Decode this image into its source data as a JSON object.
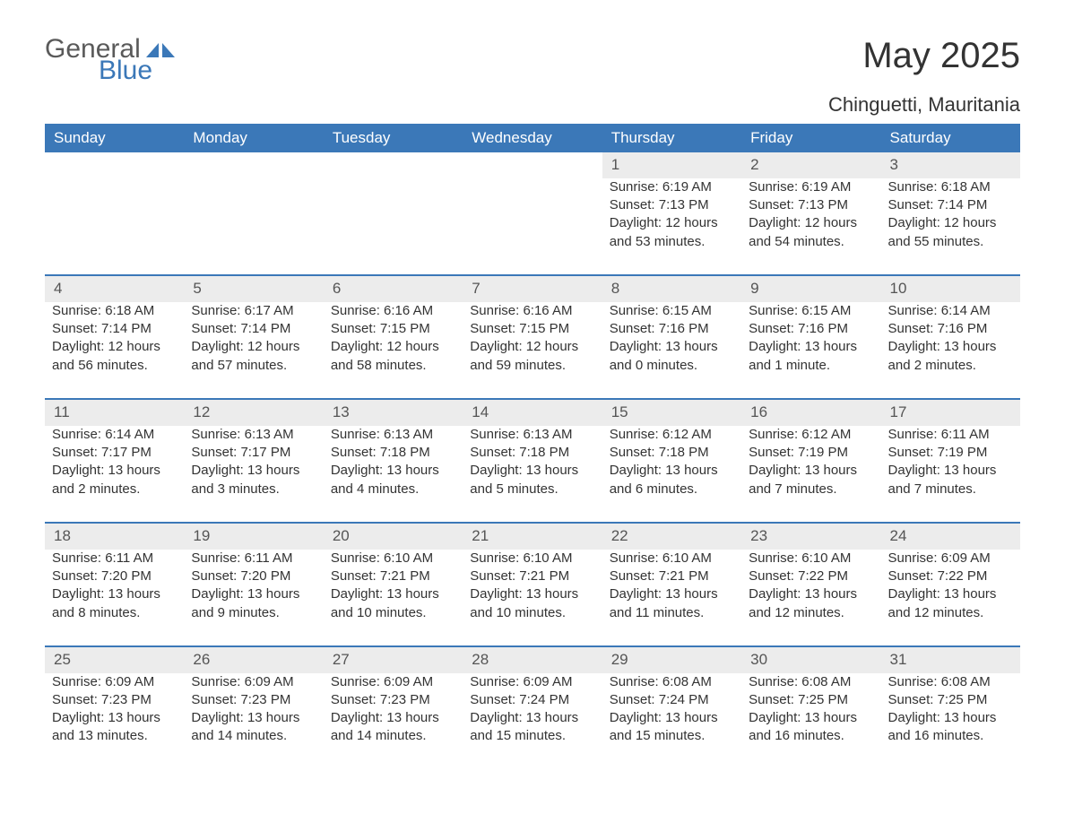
{
  "brand": {
    "word1": "General",
    "word2": "Blue"
  },
  "title": "May 2025",
  "location": "Chinguetti, Mauritania",
  "colors": {
    "header_bg": "#3b78b8",
    "header_text": "#ffffff",
    "daynum_bg": "#ececec",
    "rule": "#3b78b8",
    "body_text": "#333333",
    "background": "#ffffff"
  },
  "weekdays": [
    "Sunday",
    "Monday",
    "Tuesday",
    "Wednesday",
    "Thursday",
    "Friday",
    "Saturday"
  ],
  "weeks": [
    [
      null,
      null,
      null,
      null,
      {
        "n": "1",
        "sr": "Sunrise: 6:19 AM",
        "ss": "Sunset: 7:13 PM",
        "dl": "Daylight: 12 hours and 53 minutes."
      },
      {
        "n": "2",
        "sr": "Sunrise: 6:19 AM",
        "ss": "Sunset: 7:13 PM",
        "dl": "Daylight: 12 hours and 54 minutes."
      },
      {
        "n": "3",
        "sr": "Sunrise: 6:18 AM",
        "ss": "Sunset: 7:14 PM",
        "dl": "Daylight: 12 hours and 55 minutes."
      }
    ],
    [
      {
        "n": "4",
        "sr": "Sunrise: 6:18 AM",
        "ss": "Sunset: 7:14 PM",
        "dl": "Daylight: 12 hours and 56 minutes."
      },
      {
        "n": "5",
        "sr": "Sunrise: 6:17 AM",
        "ss": "Sunset: 7:14 PM",
        "dl": "Daylight: 12 hours and 57 minutes."
      },
      {
        "n": "6",
        "sr": "Sunrise: 6:16 AM",
        "ss": "Sunset: 7:15 PM",
        "dl": "Daylight: 12 hours and 58 minutes."
      },
      {
        "n": "7",
        "sr": "Sunrise: 6:16 AM",
        "ss": "Sunset: 7:15 PM",
        "dl": "Daylight: 12 hours and 59 minutes."
      },
      {
        "n": "8",
        "sr": "Sunrise: 6:15 AM",
        "ss": "Sunset: 7:16 PM",
        "dl": "Daylight: 13 hours and 0 minutes."
      },
      {
        "n": "9",
        "sr": "Sunrise: 6:15 AM",
        "ss": "Sunset: 7:16 PM",
        "dl": "Daylight: 13 hours and 1 minute."
      },
      {
        "n": "10",
        "sr": "Sunrise: 6:14 AM",
        "ss": "Sunset: 7:16 PM",
        "dl": "Daylight: 13 hours and 2 minutes."
      }
    ],
    [
      {
        "n": "11",
        "sr": "Sunrise: 6:14 AM",
        "ss": "Sunset: 7:17 PM",
        "dl": "Daylight: 13 hours and 2 minutes."
      },
      {
        "n": "12",
        "sr": "Sunrise: 6:13 AM",
        "ss": "Sunset: 7:17 PM",
        "dl": "Daylight: 13 hours and 3 minutes."
      },
      {
        "n": "13",
        "sr": "Sunrise: 6:13 AM",
        "ss": "Sunset: 7:18 PM",
        "dl": "Daylight: 13 hours and 4 minutes."
      },
      {
        "n": "14",
        "sr": "Sunrise: 6:13 AM",
        "ss": "Sunset: 7:18 PM",
        "dl": "Daylight: 13 hours and 5 minutes."
      },
      {
        "n": "15",
        "sr": "Sunrise: 6:12 AM",
        "ss": "Sunset: 7:18 PM",
        "dl": "Daylight: 13 hours and 6 minutes."
      },
      {
        "n": "16",
        "sr": "Sunrise: 6:12 AM",
        "ss": "Sunset: 7:19 PM",
        "dl": "Daylight: 13 hours and 7 minutes."
      },
      {
        "n": "17",
        "sr": "Sunrise: 6:11 AM",
        "ss": "Sunset: 7:19 PM",
        "dl": "Daylight: 13 hours and 7 minutes."
      }
    ],
    [
      {
        "n": "18",
        "sr": "Sunrise: 6:11 AM",
        "ss": "Sunset: 7:20 PM",
        "dl": "Daylight: 13 hours and 8 minutes."
      },
      {
        "n": "19",
        "sr": "Sunrise: 6:11 AM",
        "ss": "Sunset: 7:20 PM",
        "dl": "Daylight: 13 hours and 9 minutes."
      },
      {
        "n": "20",
        "sr": "Sunrise: 6:10 AM",
        "ss": "Sunset: 7:21 PM",
        "dl": "Daylight: 13 hours and 10 minutes."
      },
      {
        "n": "21",
        "sr": "Sunrise: 6:10 AM",
        "ss": "Sunset: 7:21 PM",
        "dl": "Daylight: 13 hours and 10 minutes."
      },
      {
        "n": "22",
        "sr": "Sunrise: 6:10 AM",
        "ss": "Sunset: 7:21 PM",
        "dl": "Daylight: 13 hours and 11 minutes."
      },
      {
        "n": "23",
        "sr": "Sunrise: 6:10 AM",
        "ss": "Sunset: 7:22 PM",
        "dl": "Daylight: 13 hours and 12 minutes."
      },
      {
        "n": "24",
        "sr": "Sunrise: 6:09 AM",
        "ss": "Sunset: 7:22 PM",
        "dl": "Daylight: 13 hours and 12 minutes."
      }
    ],
    [
      {
        "n": "25",
        "sr": "Sunrise: 6:09 AM",
        "ss": "Sunset: 7:23 PM",
        "dl": "Daylight: 13 hours and 13 minutes."
      },
      {
        "n": "26",
        "sr": "Sunrise: 6:09 AM",
        "ss": "Sunset: 7:23 PM",
        "dl": "Daylight: 13 hours and 14 minutes."
      },
      {
        "n": "27",
        "sr": "Sunrise: 6:09 AM",
        "ss": "Sunset: 7:23 PM",
        "dl": "Daylight: 13 hours and 14 minutes."
      },
      {
        "n": "28",
        "sr": "Sunrise: 6:09 AM",
        "ss": "Sunset: 7:24 PM",
        "dl": "Daylight: 13 hours and 15 minutes."
      },
      {
        "n": "29",
        "sr": "Sunrise: 6:08 AM",
        "ss": "Sunset: 7:24 PM",
        "dl": "Daylight: 13 hours and 15 minutes."
      },
      {
        "n": "30",
        "sr": "Sunrise: 6:08 AM",
        "ss": "Sunset: 7:25 PM",
        "dl": "Daylight: 13 hours and 16 minutes."
      },
      {
        "n": "31",
        "sr": "Sunrise: 6:08 AM",
        "ss": "Sunset: 7:25 PM",
        "dl": "Daylight: 13 hours and 16 minutes."
      }
    ]
  ]
}
